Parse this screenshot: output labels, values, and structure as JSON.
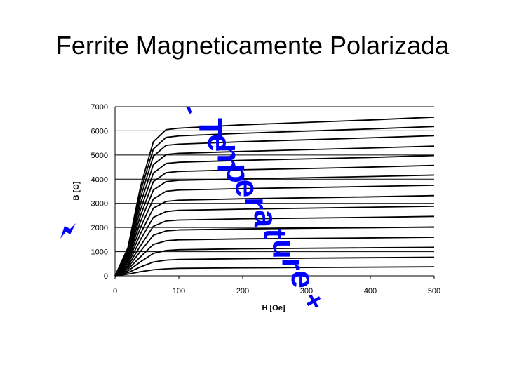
{
  "slide": {
    "title": "Ferrite Magneticamente Polarizada"
  },
  "annotations": {
    "temperature_word": "Temperature",
    "minus_sign": "-",
    "plus_sign": "+",
    "arrow_icon": "arrow-icon",
    "arrow_color": "#0000ff"
  },
  "chart_data": {
    "type": "line",
    "title": "",
    "xlabel": "H [Oe]",
    "ylabel": "B [G]",
    "xlim": [
      0,
      500
    ],
    "ylim": [
      0,
      7000
    ],
    "x_ticks": [
      "0",
      "100",
      "200",
      "300",
      "400",
      "500"
    ],
    "y_ticks": [
      "0",
      "1000",
      "2000",
      "3000",
      "4000",
      "5000",
      "6000",
      "7000"
    ],
    "grid": "horizontal",
    "line_color": "#000000",
    "series": [
      {
        "values": [
          [
            0,
            0
          ],
          [
            20,
            1150
          ],
          [
            40,
            3700
          ],
          [
            60,
            5550
          ],
          [
            80,
            6050
          ],
          [
            100,
            6110
          ],
          [
            200,
            6250
          ],
          [
            300,
            6350
          ],
          [
            400,
            6450
          ],
          [
            500,
            6570
          ]
        ]
      },
      {
        "values": [
          [
            0,
            0
          ],
          [
            20,
            1080
          ],
          [
            40,
            3500
          ],
          [
            60,
            5250
          ],
          [
            80,
            5730
          ],
          [
            100,
            5790
          ],
          [
            200,
            5900
          ],
          [
            300,
            5990
          ],
          [
            400,
            6080
          ],
          [
            500,
            6180
          ]
        ]
      },
      {
        "values": [
          [
            0,
            0
          ],
          [
            20,
            1020
          ],
          [
            40,
            3250
          ],
          [
            60,
            4950
          ],
          [
            80,
            5400
          ],
          [
            100,
            5450
          ],
          [
            200,
            5550
          ],
          [
            300,
            5630
          ],
          [
            400,
            5710
          ],
          [
            500,
            5800
          ]
        ]
      },
      {
        "values": [
          [
            0,
            0
          ],
          [
            20,
            950
          ],
          [
            40,
            3000
          ],
          [
            60,
            4600
          ],
          [
            80,
            5020
          ],
          [
            100,
            5070
          ],
          [
            200,
            5150
          ],
          [
            300,
            5220
          ],
          [
            400,
            5290
          ],
          [
            500,
            5370
          ]
        ]
      },
      {
        "values": [
          [
            0,
            0
          ],
          [
            20,
            880
          ],
          [
            40,
            2750
          ],
          [
            60,
            4250
          ],
          [
            80,
            4650
          ],
          [
            100,
            4700
          ],
          [
            200,
            4780
          ],
          [
            300,
            4840
          ],
          [
            400,
            4900
          ],
          [
            500,
            4980
          ]
        ]
      },
      {
        "values": [
          [
            0,
            0
          ],
          [
            20,
            800
          ],
          [
            40,
            2500
          ],
          [
            60,
            3900
          ],
          [
            80,
            4270
          ],
          [
            100,
            4320
          ],
          [
            200,
            4390
          ],
          [
            300,
            4440
          ],
          [
            400,
            4500
          ],
          [
            500,
            4570
          ]
        ]
      },
      {
        "values": [
          [
            0,
            0
          ],
          [
            20,
            730
          ],
          [
            40,
            2250
          ],
          [
            60,
            3550
          ],
          [
            80,
            3900
          ],
          [
            100,
            3950
          ],
          [
            200,
            4010
          ],
          [
            300,
            4060
          ],
          [
            400,
            4110
          ],
          [
            500,
            4170
          ]
        ]
      },
      {
        "values": [
          [
            0,
            0
          ],
          [
            20,
            650
          ],
          [
            40,
            2000
          ],
          [
            60,
            3180
          ],
          [
            80,
            3500
          ],
          [
            100,
            3550
          ],
          [
            200,
            3610
          ],
          [
            300,
            3650
          ],
          [
            400,
            3700
          ],
          [
            500,
            3750
          ]
        ]
      },
      {
        "values": [
          [
            0,
            0
          ],
          [
            20,
            570
          ],
          [
            40,
            1750
          ],
          [
            60,
            2800
          ],
          [
            80,
            3080
          ],
          [
            100,
            3130
          ],
          [
            200,
            3190
          ],
          [
            300,
            3230
          ],
          [
            400,
            3270
          ],
          [
            500,
            3320
          ]
        ]
      },
      {
        "values": [
          [
            0,
            0
          ],
          [
            20,
            490
          ],
          [
            40,
            1500
          ],
          [
            60,
            2420
          ],
          [
            80,
            2660
          ],
          [
            100,
            2710
          ],
          [
            200,
            2760
          ],
          [
            300,
            2800
          ],
          [
            400,
            2840
          ],
          [
            500,
            2880
          ]
        ]
      },
      {
        "values": [
          [
            0,
            0
          ],
          [
            20,
            410
          ],
          [
            40,
            1250
          ],
          [
            60,
            2050
          ],
          [
            80,
            2270
          ],
          [
            100,
            2310
          ],
          [
            200,
            2360
          ],
          [
            300,
            2390
          ],
          [
            400,
            2420
          ],
          [
            500,
            2460
          ]
        ]
      },
      {
        "values": [
          [
            0,
            0
          ],
          [
            20,
            340
          ],
          [
            40,
            1020
          ],
          [
            60,
            1680
          ],
          [
            80,
            1860
          ],
          [
            100,
            1900
          ],
          [
            200,
            1940
          ],
          [
            300,
            1970
          ],
          [
            400,
            1990
          ],
          [
            500,
            2020
          ]
        ]
      },
      {
        "values": [
          [
            0,
            0
          ],
          [
            20,
            270
          ],
          [
            40,
            790
          ],
          [
            60,
            1300
          ],
          [
            80,
            1450
          ],
          [
            100,
            1490
          ],
          [
            200,
            1530
          ],
          [
            300,
            1550
          ],
          [
            400,
            1570
          ],
          [
            500,
            1600
          ]
        ]
      },
      {
        "values": [
          [
            0,
            0
          ],
          [
            20,
            200
          ],
          [
            40,
            580
          ],
          [
            60,
            930
          ],
          [
            80,
            1050
          ],
          [
            100,
            1080
          ],
          [
            200,
            1120
          ],
          [
            300,
            1140
          ],
          [
            400,
            1160
          ],
          [
            500,
            1180
          ]
        ]
      },
      {
        "values": [
          [
            0,
            0
          ],
          [
            20,
            130
          ],
          [
            40,
            370
          ],
          [
            60,
            570
          ],
          [
            80,
            650
          ],
          [
            100,
            680
          ],
          [
            200,
            710
          ],
          [
            300,
            730
          ],
          [
            400,
            750
          ],
          [
            500,
            770
          ]
        ]
      },
      {
        "values": [
          [
            0,
            0
          ],
          [
            20,
            70
          ],
          [
            40,
            170
          ],
          [
            60,
            250
          ],
          [
            80,
            290
          ],
          [
            100,
            310
          ],
          [
            200,
            330
          ],
          [
            300,
            345
          ],
          [
            400,
            360
          ],
          [
            500,
            375
          ]
        ]
      }
    ]
  }
}
